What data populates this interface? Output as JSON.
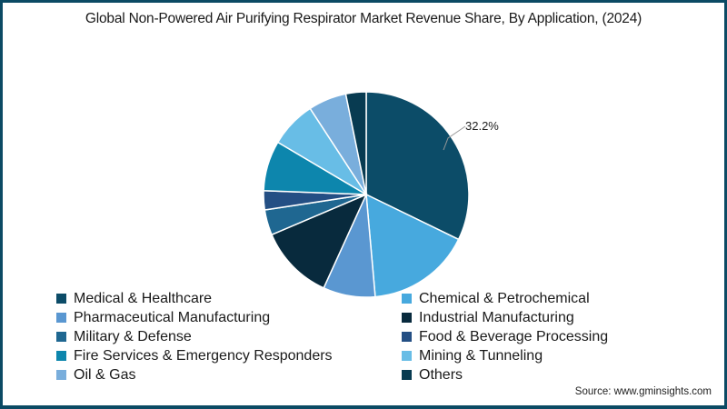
{
  "chart_data": {
    "type": "pie",
    "title": "Global Non-Powered Air Purifying Respirator Market Revenue Share, By Application,  (2024)",
    "categories": [
      "Medical & Healthcare",
      "Chemical & Petrochemical",
      "Pharmaceutical Manufacturing",
      "Industrial Manufacturing",
      "Military & Defense",
      "Food & Beverage Processing",
      "Fire Services & Emergency Responders",
      "Mining & Tunneling",
      "Oil & Gas",
      "Others"
    ],
    "values": [
      32.2,
      16.4,
      8.2,
      11.8,
      4.0,
      3.0,
      7.9,
      7.3,
      6.0,
      3.2
    ],
    "colors": [
      "#0c4c68",
      "#47a9de",
      "#5a97d1",
      "#082a3d",
      "#1f6791",
      "#244f84",
      "#0d86ad",
      "#68bde6",
      "#79aedc",
      "#083b51"
    ],
    "annotations": [
      {
        "category": "Medical & Healthcare",
        "label": "32.2%"
      }
    ],
    "legend_position": "bottom",
    "start_angle": "top, clockwise",
    "source": "Source: www.gminsights.com"
  },
  "title": "Global Non-Powered Air Purifying Respirator Market Revenue Share, By Application,  (2024)",
  "legend": {
    "left": [
      {
        "label": "Medical & Healthcare",
        "color": "#0c4c68"
      },
      {
        "label": "Pharmaceutical Manufacturing",
        "color": "#5a97d1"
      },
      {
        "label": "Military & Defense",
        "color": "#1f6791"
      },
      {
        "label": "Fire Services & Emergency Responders",
        "color": "#0d86ad"
      },
      {
        "label": "Oil & Gas",
        "color": "#79aedc"
      }
    ],
    "right": [
      {
        "label": "Chemical & Petrochemical",
        "color": "#47a9de"
      },
      {
        "label": "Industrial Manufacturing",
        "color": "#082a3d"
      },
      {
        "label": "Food & Beverage Processing",
        "color": "#244f84"
      },
      {
        "label": "Mining & Tunneling",
        "color": "#68bde6"
      },
      {
        "label": "Others",
        "color": "#083b51"
      }
    ]
  },
  "annotation": "32.2%",
  "source": "Source: www.gminsights.com"
}
